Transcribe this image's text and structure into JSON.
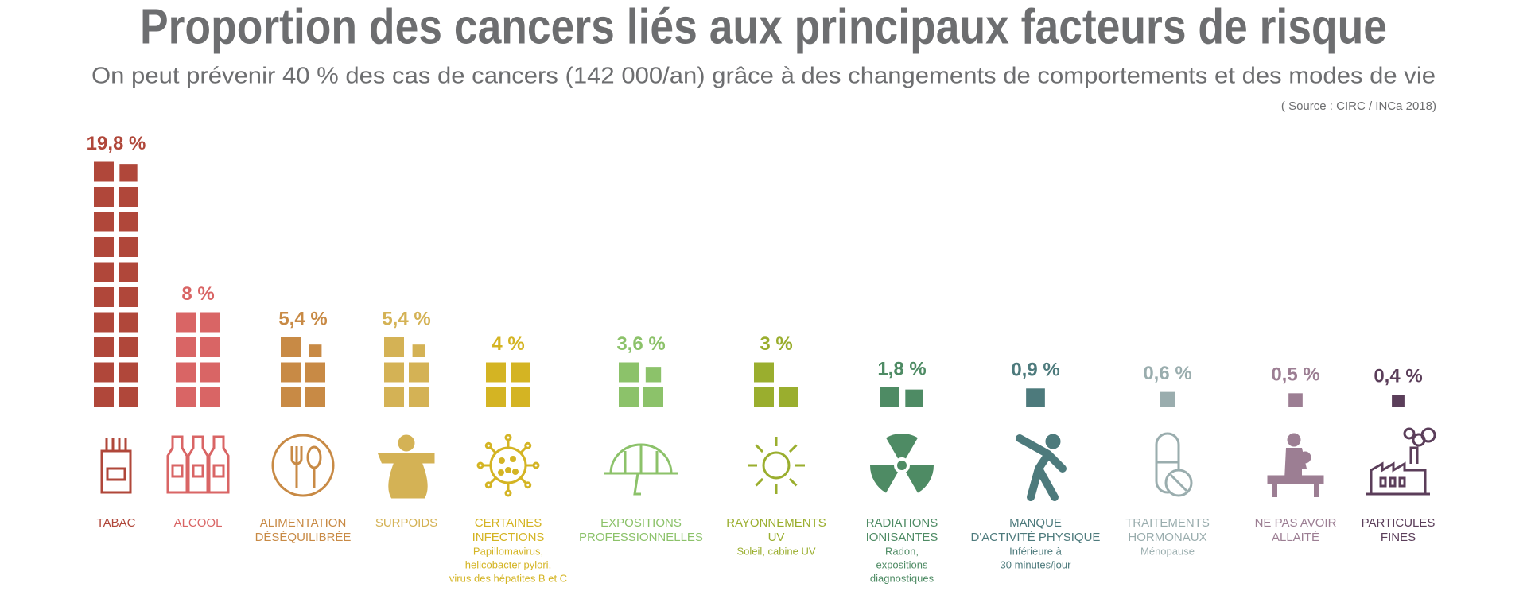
{
  "chart_data": {
    "type": "pictogram",
    "title": "Proportion des cancers liés aux principaux facteurs de risque",
    "subtitle": "On peut prévenir 40 % des cas de cancers (142 000/an) grâce à des changements de comportements et des modes de vie",
    "source": "( Source : CIRC / INCa 2018)",
    "categories": [
      [
        "TABAC"
      ],
      [
        "ALCOOL"
      ],
      [
        "ALIMENTATION",
        "DÉSÉQUILIBRÉE"
      ],
      [
        "SURPOIDS"
      ],
      [
        "CERTAINES",
        "INFECTIONS"
      ],
      [
        "EXPOSITIONS",
        "PROFESSIONNELLES"
      ],
      [
        "RAYONNEMENTS",
        "UV"
      ],
      [
        "RADIATIONS",
        "IONISANTES"
      ],
      [
        "MANQUE",
        "D'ACTIVITÉ PHYSIQUE"
      ],
      [
        "TRAITEMENTS",
        "HORMONAUX"
      ],
      [
        "NE PAS AVOIR",
        "ALLAITÉ"
      ],
      [
        "PARTICULES",
        "FINES"
      ]
    ],
    "details": [
      [],
      [],
      [],
      [],
      [
        "Papillomavirus,",
        "helicobacter pylori,",
        "virus des hépatites B et C"
      ],
      [],
      [
        "Soleil, cabine UV"
      ],
      [
        "Radon,",
        "expositions",
        "diagnostiques"
      ],
      [
        "Inférieure à",
        "30 minutes/jour"
      ],
      [
        "Ménopause"
      ],
      [],
      []
    ],
    "values": [
      19.8,
      8,
      5.4,
      5.4,
      4,
      3.6,
      3,
      1.8,
      0.9,
      0.6,
      0.5,
      0.4
    ],
    "value_labels": [
      "19,8 %",
      "8 %",
      "5,4 %",
      "5,4 %",
      "4 %",
      "3,6 %",
      "3 %",
      "1,8 %",
      "0,9 %",
      "0,6 %",
      "0,5 %",
      "0,4 %"
    ],
    "colors": [
      "#b0473a",
      "#d96565",
      "#c88a45",
      "#d4b255",
      "#d4b423",
      "#8cc26a",
      "#9aae2e",
      "#4e8b64",
      "#4d7a7c",
      "#9aadae",
      "#9c7e93",
      "#5b3e5a"
    ]
  }
}
